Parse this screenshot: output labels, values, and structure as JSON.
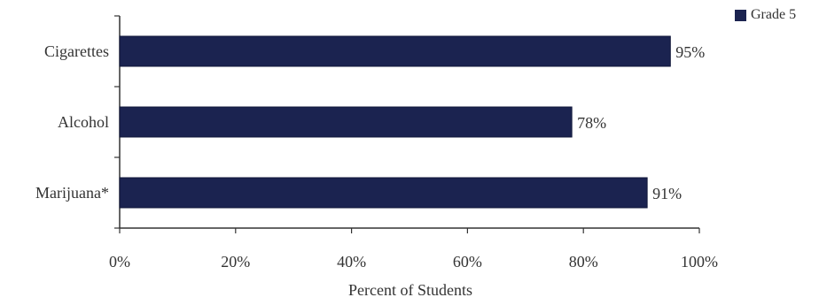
{
  "chart_data": {
    "type": "bar",
    "orientation": "horizontal",
    "categories": [
      "Cigarettes",
      "Alcohol",
      "Marijuana*"
    ],
    "series": [
      {
        "name": "Grade 5",
        "values": [
          95,
          78,
          91
        ],
        "labels": [
          "95%",
          "78%",
          "91%"
        ]
      }
    ],
    "xlabel": "Percent of Students",
    "ylabel": "",
    "xlim": [
      0,
      100
    ],
    "x_ticks": [
      0,
      20,
      40,
      60,
      80,
      100
    ],
    "x_tick_labels": [
      "0%",
      "20%",
      "40%",
      "60%",
      "80%",
      "100%"
    ],
    "grid": false,
    "legend": "top-right",
    "bar_color": "#1b2350"
  }
}
